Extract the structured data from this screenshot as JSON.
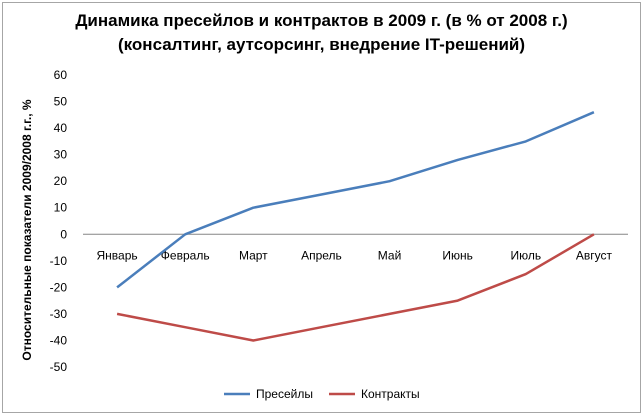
{
  "chart_data": {
    "type": "line",
    "title_lines": [
      "Динамика пресейлов и контрактов в 2009 г. (в % от 2008 г.)",
      "(консалтинг, аутсорсинг, внедрение IT-решений)"
    ],
    "ylabel": "Относительные показатели 2009/2008 г.г., %",
    "xlabel": "",
    "categories": [
      "Январь",
      "Февраль",
      "Март",
      "Апрель",
      "Май",
      "Июнь",
      "Июль",
      "Август"
    ],
    "ylim": [
      -50,
      60
    ],
    "yticks": [
      60,
      50,
      40,
      30,
      20,
      10,
      0,
      -10,
      -20,
      -30,
      -40,
      -50
    ],
    "series": [
      {
        "name": "Пресейлы",
        "color": "#4a7ebb",
        "values": [
          -20,
          0,
          10,
          15,
          20,
          28,
          35,
          46
        ]
      },
      {
        "name": "Контракты",
        "color": "#be4b48",
        "values": [
          -30,
          -35,
          -40,
          -35,
          -30,
          -25,
          -15,
          0
        ]
      }
    ],
    "legend_position": "bottom"
  }
}
